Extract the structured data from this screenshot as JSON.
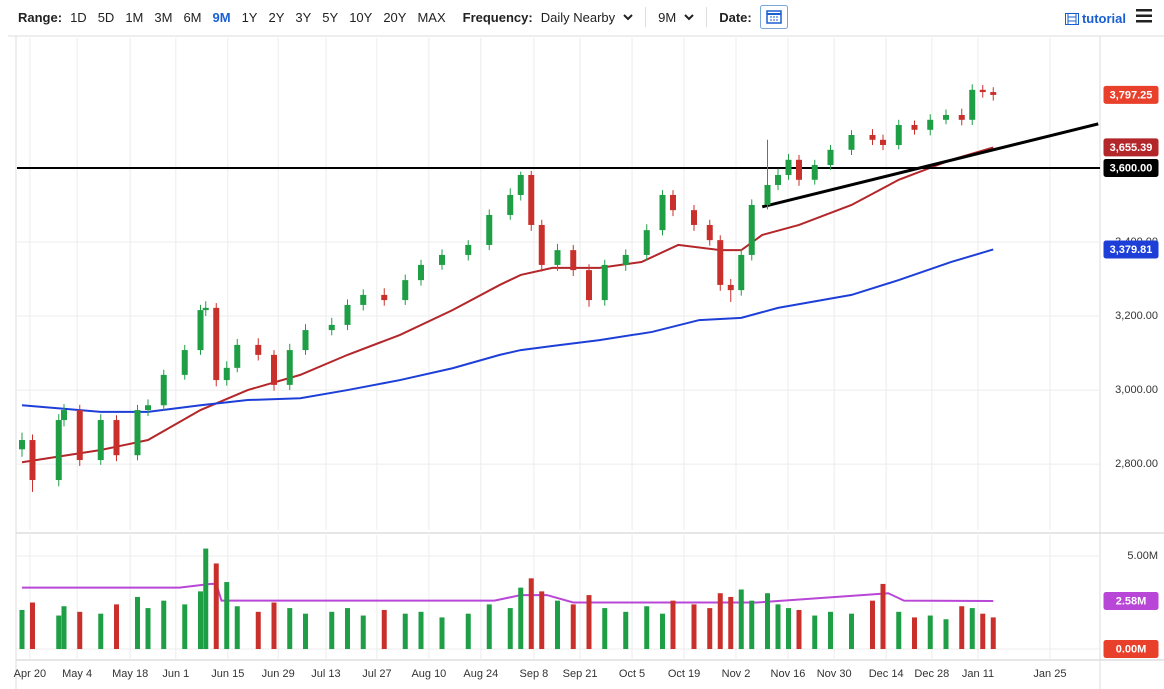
{
  "toolbar": {
    "range_label": "Range:",
    "ranges": [
      "1D",
      "5D",
      "1M",
      "3M",
      "6M",
      "9M",
      "1Y",
      "2Y",
      "3Y",
      "5Y",
      "10Y",
      "20Y",
      "MAX"
    ],
    "active_range_index": 5,
    "frequency_label": "Frequency:",
    "frequency": "Daily Nearby",
    "period": "9M",
    "date_label": "Date:",
    "tutorial": "tutorial"
  },
  "chart_data": [
    {
      "type": "candlestick",
      "x": [
        0,
        2,
        7,
        8,
        11,
        15,
        18,
        22,
        24,
        27,
        31,
        34,
        35,
        37,
        39,
        41,
        45,
        48,
        51,
        54,
        59,
        62,
        65,
        69,
        73,
        76,
        80,
        85,
        89,
        93,
        95,
        97,
        99,
        102,
        105,
        108,
        111,
        115,
        119,
        122,
        124,
        128,
        131,
        133,
        135,
        137,
        139,
        142,
        144,
        146,
        148,
        151,
        154,
        158,
        162,
        164,
        167,
        170,
        173,
        176,
        179,
        181,
        183,
        185
      ],
      "open": [
        2840,
        2865,
        2757,
        2919,
        2946,
        2811,
        2919,
        2824,
        2946,
        2959,
        3041,
        3108,
        3216,
        3222,
        3027,
        3060,
        3122,
        3095,
        3014,
        3108,
        3162,
        3176,
        3230,
        3257,
        3243,
        3297,
        3338,
        3365,
        3392,
        3473,
        3527,
        3581,
        3446,
        3338,
        3378,
        3324,
        3243,
        3338,
        3365,
        3432,
        3527,
        3486,
        3446,
        3405,
        3284,
        3270,
        3365,
        3500,
        3554,
        3581,
        3622,
        3568,
        3608,
        3649,
        3689,
        3676,
        3662,
        3716,
        3703,
        3730,
        3743,
        3730,
        3811,
        3805
      ],
      "high": [
        2885,
        2880,
        2935,
        2962,
        2960,
        2935,
        2932,
        2960,
        2975,
        3055,
        3122,
        3230,
        3240,
        3235,
        3078,
        3138,
        3140,
        3108,
        3125,
        3178,
        3195,
        3245,
        3272,
        3275,
        3312,
        3352,
        3380,
        3405,
        3488,
        3545,
        3590,
        3592,
        3460,
        3395,
        3392,
        3340,
        3352,
        3380,
        3448,
        3540,
        3540,
        3500,
        3460,
        3418,
        3300,
        3380,
        3515,
        3676,
        3598,
        3638,
        3635,
        3622,
        3662,
        3702,
        3705,
        3690,
        3730,
        3728,
        3745,
        3758,
        3760,
        3826,
        3824,
        3818
      ],
      "low": [
        2820,
        2725,
        2740,
        2902,
        2795,
        2798,
        2808,
        2810,
        2930,
        2945,
        3028,
        3095,
        3200,
        3010,
        3012,
        3048,
        3080,
        2998,
        3000,
        3095,
        3148,
        3162,
        3215,
        3228,
        3230,
        3282,
        3325,
        3350,
        3378,
        3460,
        3512,
        3430,
        3320,
        3322,
        3308,
        3225,
        3228,
        3322,
        3350,
        3418,
        3470,
        3430,
        3390,
        3268,
        3238,
        3255,
        3350,
        3488,
        3540,
        3568,
        3552,
        3555,
        3595,
        3635,
        3662,
        3648,
        3650,
        3690,
        3688,
        3718,
        3715,
        3716,
        3790,
        3782
      ],
      "close": [
        2865,
        2757,
        2919,
        2946,
        2811,
        2919,
        2824,
        2946,
        2959,
        3041,
        3108,
        3216,
        3222,
        3027,
        3060,
        3122,
        3095,
        3014,
        3108,
        3162,
        3176,
        3230,
        3257,
        3243,
        3297,
        3338,
        3365,
        3392,
        3473,
        3527,
        3581,
        3446,
        3338,
        3378,
        3324,
        3243,
        3338,
        3365,
        3432,
        3527,
        3486,
        3446,
        3405,
        3284,
        3270,
        3365,
        3500,
        3554,
        3581,
        3622,
        3568,
        3608,
        3649,
        3689,
        3676,
        3662,
        3716,
        3703,
        3730,
        3743,
        3730,
        3811,
        3805,
        3797.25
      ],
      "close_label": "3,797.25",
      "close_label_color": "#e8402b",
      "up_color": "#1e9e45",
      "down_color": "#c9302c",
      "xlim": [
        -1,
        205
      ],
      "ylim": [
        2622,
        3951
      ],
      "yticks": [
        {
          "value": 2800,
          "label": "2,800.00"
        },
        {
          "value": 3000,
          "label": "3,000.00"
        },
        {
          "value": 3200,
          "label": "3,200.00"
        },
        {
          "value": 3400,
          "label": "3,400.00"
        }
      ],
      "grid": true,
      "lines": [
        {
          "x": [
            0,
            15,
            24,
            34,
            43,
            53,
            62,
            72,
            82,
            91,
            95,
            101,
            110,
            118,
            125,
            133,
            137,
            141,
            148,
            158,
            167,
            177,
            185
          ],
          "values": [
            2805,
            2838,
            2865,
            2946,
            3000,
            3041,
            3095,
            3149,
            3216,
            3284,
            3311,
            3330,
            3330,
            3346,
            3392,
            3378,
            3378,
            3419,
            3446,
            3500,
            3568,
            3622,
            3655.39
          ],
          "color": "#b3262a",
          "end_label": "3,655.39"
        },
        {
          "x": [
            0,
            15,
            24,
            34,
            43,
            53,
            62,
            72,
            82,
            91,
            95,
            101,
            110,
            120,
            129,
            137,
            144,
            158,
            167,
            177,
            185
          ],
          "values": [
            2959,
            2941,
            2941,
            2959,
            2973,
            2978,
            3000,
            3027,
            3059,
            3095,
            3108,
            3119,
            3135,
            3157,
            3189,
            3195,
            3222,
            3257,
            3297,
            3346,
            3379.81
          ],
          "color": "#1d3fd8",
          "end_label": "3,379.81"
        }
      ],
      "hlines": [
        {
          "value": 3600,
          "label": "3,600.00",
          "color": "#000000"
        }
      ],
      "trendlines": [
        {
          "x": [
            141,
            205
          ],
          "values": [
            3495,
            3719
          ],
          "color": "#000000"
        }
      ]
    },
    {
      "type": "bar",
      "x": [
        0,
        2,
        7,
        8,
        11,
        15,
        18,
        22,
        24,
        27,
        31,
        34,
        35,
        37,
        39,
        41,
        45,
        48,
        51,
        54,
        59,
        62,
        65,
        69,
        73,
        76,
        80,
        85,
        89,
        93,
        95,
        97,
        99,
        102,
        105,
        108,
        111,
        115,
        119,
        122,
        124,
        128,
        131,
        133,
        135,
        137,
        139,
        142,
        144,
        146,
        148,
        151,
        154,
        158,
        162,
        164,
        167,
        170,
        173,
        176,
        179,
        181,
        183,
        185
      ],
      "values": [
        2.1,
        2.5,
        1.8,
        2.3,
        2.0,
        1.9,
        2.4,
        2.8,
        2.2,
        2.6,
        2.4,
        3.1,
        5.4,
        4.6,
        3.6,
        2.3,
        2.0,
        2.5,
        2.2,
        1.9,
        2.0,
        2.2,
        1.8,
        2.1,
        1.9,
        2.0,
        1.7,
        1.9,
        2.4,
        2.2,
        3.3,
        3.8,
        3.1,
        2.6,
        2.4,
        2.9,
        2.2,
        2.0,
        2.3,
        1.9,
        2.6,
        2.4,
        2.2,
        3.0,
        2.8,
        3.2,
        2.6,
        3.0,
        2.4,
        2.2,
        2.1,
        1.8,
        2.0,
        1.9,
        2.6,
        3.5,
        2.0,
        1.7,
        1.8,
        1.6,
        2.3,
        2.2,
        1.9,
        1.7
      ],
      "xlim": [
        -1,
        205
      ],
      "ylim": [
        -0.59,
        6.13
      ],
      "yticks": [
        {
          "value": 5,
          "label": "5.00M"
        },
        {
          "value": 0,
          "label": "0.00M",
          "box": "#e8402b"
        }
      ],
      "xticks": [
        {
          "value": 1.5,
          "label": "Apr 20"
        },
        {
          "value": 10.5,
          "label": "May 4"
        },
        {
          "value": 20.6,
          "label": "May 18"
        },
        {
          "value": 29.3,
          "label": "Jun 1"
        },
        {
          "value": 39.2,
          "label": "Jun 15"
        },
        {
          "value": 48.8,
          "label": "Jun 29"
        },
        {
          "value": 57.9,
          "label": "Jul 13"
        },
        {
          "value": 67.6,
          "label": "Jul 27"
        },
        {
          "value": 77.5,
          "label": "Aug 10"
        },
        {
          "value": 87.4,
          "label": "Aug 24"
        },
        {
          "value": 97.5,
          "label": "Sep 8"
        },
        {
          "value": 106.3,
          "label": "Sep 21"
        },
        {
          "value": 116.2,
          "label": "Oct 5"
        },
        {
          "value": 126.1,
          "label": "Oct 19"
        },
        {
          "value": 136,
          "label": "Nov 2"
        },
        {
          "value": 145.9,
          "label": "Nov 16"
        },
        {
          "value": 154.7,
          "label": "Nov 30"
        },
        {
          "value": 164.6,
          "label": "Dec 14"
        },
        {
          "value": 173.3,
          "label": "Dec 28"
        },
        {
          "value": 182.1,
          "label": "Jan 11"
        },
        {
          "value": 195.8,
          "label": "Jan 25"
        }
      ],
      "grid": true,
      "lines": [
        {
          "x": [
            0,
            30,
            36,
            37,
            38,
            90,
            95,
            100,
            105,
            140,
            160,
            165,
            168,
            185
          ],
          "values": [
            3.3,
            3.3,
            3.5,
            3.5,
            2.6,
            2.6,
            2.9,
            2.9,
            2.5,
            2.5,
            2.9,
            3.0,
            2.6,
            2.58
          ],
          "color": "#b846d6",
          "end_label": "2.58M"
        }
      ]
    }
  ]
}
